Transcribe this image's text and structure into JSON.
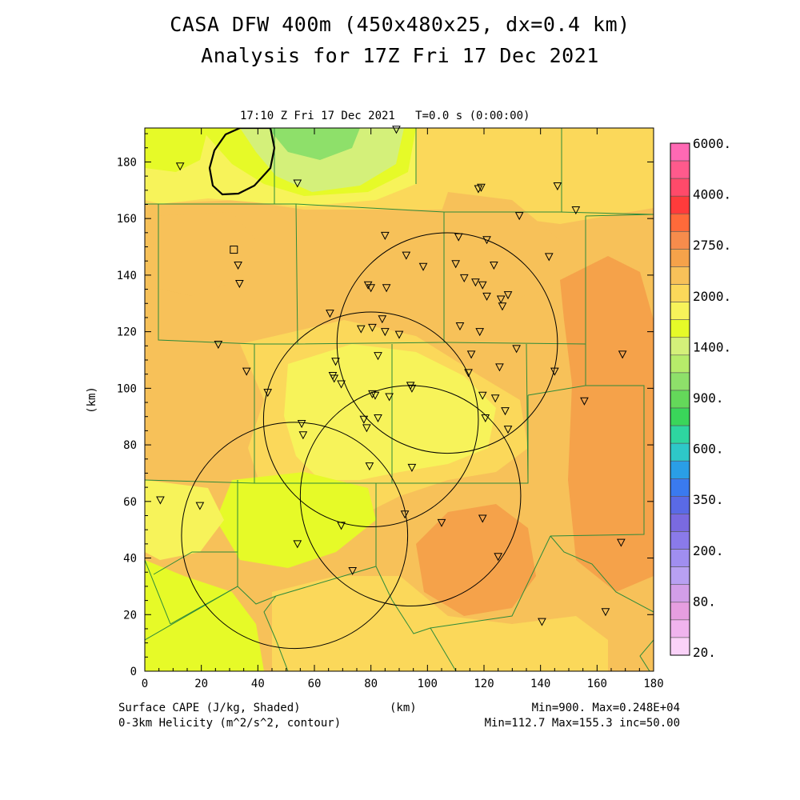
{
  "title": {
    "line1": "CASA DFW 400m (450x480x25, dx=0.4 km)",
    "line2": "Analysis for 17Z Fri 17 Dec 2021"
  },
  "time_label": "17:10 Z Fri 17 Dec 2021   T=0.0 s (0:00:00)",
  "footer": {
    "left1": "Surface CAPE (J/kg, Shaded)",
    "left2": "0-3km Helicity (m^2/s^2, contour)",
    "center": "(km)",
    "right1": "Min=900. Max=0.248E+04",
    "right2": "Min=112.7 Max=155.3 inc=50.00"
  },
  "colors": {
    "border": "#2e8b3a",
    "yellow": "#f7f35a",
    "gold": "#fbd85a",
    "orange_light": "#f7c159",
    "orange": "#f5a24a",
    "yellow_green": "#e6fa28",
    "light_green": "#d4f07a",
    "green": "#8ee06a"
  },
  "colorbar": {
    "labels": [
      "6000.",
      "4000.",
      "2750.",
      "2000.",
      "1400.",
      "900.",
      "600.",
      "350.",
      "200.",
      "80.",
      "20."
    ],
    "colors": [
      "#ff69b4",
      "#ff5a8c",
      "#ff4a6a",
      "#ff3b3b",
      "#ff6a3a",
      "#f78c4c",
      "#f5a24a",
      "#f7c159",
      "#fbd85a",
      "#f7f35a",
      "#e6fa28",
      "#d4f07a",
      "#b6ec6a",
      "#8ee06a",
      "#64d85a",
      "#3ad65a",
      "#2ed6a0",
      "#2ec8c8",
      "#2a9ee6",
      "#3a7aef",
      "#5a6ae6",
      "#7a6ae0",
      "#8a7aea",
      "#a08ef0",
      "#b8a0f2",
      "#d29ee8",
      "#e69ee0",
      "#f0b4ee",
      "#fad2f8"
    ]
  },
  "chart_data": {
    "type": "map",
    "xlabel": "(km)",
    "ylabel": "(km)",
    "xlim": [
      0,
      180
    ],
    "ylim": [
      0,
      192
    ],
    "xticks": [
      "0",
      "20",
      "40",
      "60",
      "80",
      "100",
      "120",
      "140",
      "160",
      "180"
    ],
    "yticks": [
      "0",
      "20",
      "40",
      "60",
      "80",
      "100",
      "120",
      "140",
      "160",
      "180"
    ],
    "field_range": {
      "min": 900,
      "max": 2480
    },
    "contour_range": {
      "min": 112.7,
      "max": 155.3,
      "inc": 50.0
    },
    "radar_rings": [
      {
        "center": [
          107,
          116
        ],
        "radius": 39
      },
      {
        "center": [
          80,
          89
        ],
        "radius": 38
      },
      {
        "center": [
          94,
          62
        ],
        "radius": 39
      },
      {
        "center": [
          53,
          48
        ],
        "radius": 40
      }
    ],
    "square_marker": [
      31.5,
      149
    ],
    "stations": [
      [
        12.5,
        178.5
      ],
      [
        54,
        172.5
      ],
      [
        89,
        191.5
      ],
      [
        118,
        170.5
      ],
      [
        119,
        171
      ],
      [
        146,
        171.5
      ],
      [
        132.5,
        161
      ],
      [
        152.5,
        163
      ],
      [
        85,
        154
      ],
      [
        111,
        153.5
      ],
      [
        121,
        152.5
      ],
      [
        33,
        143.5
      ],
      [
        33.5,
        137
      ],
      [
        92.5,
        147
      ],
      [
        98.5,
        143
      ],
      [
        110,
        144
      ],
      [
        123.5,
        143.5
      ],
      [
        143,
        146.5
      ],
      [
        79,
        136.5
      ],
      [
        80,
        135.5
      ],
      [
        85.5,
        135.5
      ],
      [
        113,
        139
      ],
      [
        117,
        137.5
      ],
      [
        119.5,
        136.5
      ],
      [
        121,
        132.5
      ],
      [
        126,
        131.5
      ],
      [
        128.5,
        133
      ],
      [
        126.5,
        129
      ],
      [
        65.5,
        126.5
      ],
      [
        84,
        124.5
      ],
      [
        76.5,
        121
      ],
      [
        80.5,
        121.5
      ],
      [
        85,
        120
      ],
      [
        90,
        119
      ],
      [
        111.5,
        122
      ],
      [
        118.5,
        120
      ],
      [
        26,
        115.5
      ],
      [
        67.5,
        109.5
      ],
      [
        82.5,
        111.5
      ],
      [
        115.5,
        112
      ],
      [
        131.5,
        114
      ],
      [
        125.5,
        107.5
      ],
      [
        169,
        112
      ],
      [
        36,
        106
      ],
      [
        66.5,
        104.5
      ],
      [
        67,
        103.5
      ],
      [
        69.5,
        101.5
      ],
      [
        114.5,
        105.5
      ],
      [
        145,
        106
      ],
      [
        43.5,
        98.5
      ],
      [
        80.5,
        98
      ],
      [
        81.5,
        97.5
      ],
      [
        86.5,
        97
      ],
      [
        94,
        101
      ],
      [
        94.5,
        100
      ],
      [
        119.5,
        97.5
      ],
      [
        124,
        96.5
      ],
      [
        155.5,
        95.5
      ],
      [
        77.5,
        89
      ],
      [
        82.5,
        89.5
      ],
      [
        78.5,
        86
      ],
      [
        55.5,
        87.5
      ],
      [
        56,
        83.5
      ],
      [
        120.5,
        89.5
      ],
      [
        127.5,
        92
      ],
      [
        128.5,
        85.5
      ],
      [
        79.5,
        72.5
      ],
      [
        94.5,
        72
      ],
      [
        5.5,
        60.5
      ],
      [
        19.5,
        58.5
      ],
      [
        92,
        55.5
      ],
      [
        105,
        52.5
      ],
      [
        69.5,
        51.5
      ],
      [
        119.5,
        54
      ],
      [
        54,
        45
      ],
      [
        125,
        40.5
      ],
      [
        168.5,
        45.5
      ],
      [
        73.5,
        35.5
      ],
      [
        163,
        21
      ],
      [
        140.5,
        17.5
      ]
    ]
  }
}
